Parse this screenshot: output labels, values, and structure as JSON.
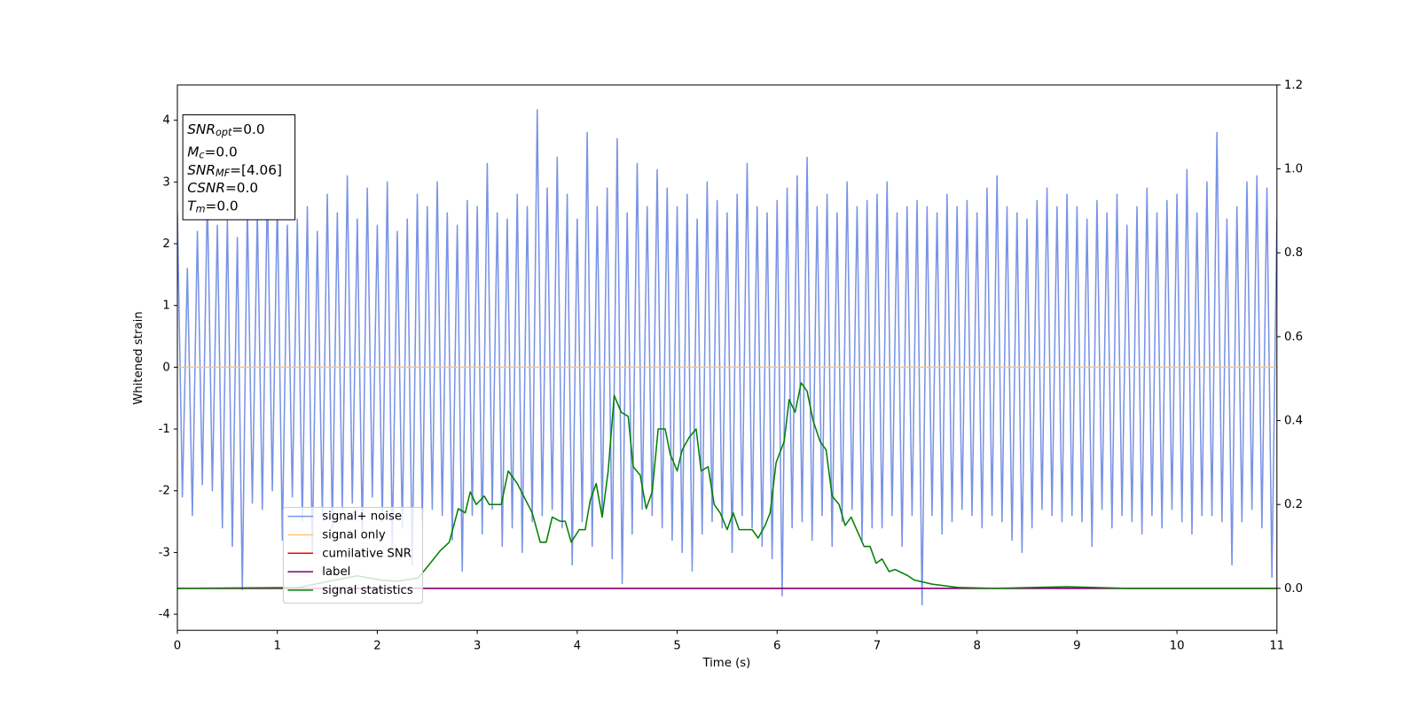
{
  "chart_data": {
    "type": "line",
    "xlabel": "Time (s)",
    "ylabel": "Whitened strain",
    "xlim": [
      0,
      11
    ],
    "xticks": [
      0,
      1,
      2,
      3,
      4,
      5,
      6,
      7,
      8,
      9,
      10,
      11
    ],
    "ylim": [
      -4.26,
      4.57
    ],
    "yticks": [
      -4,
      -3,
      -2,
      -1,
      0,
      1,
      2,
      3,
      4
    ],
    "y2lim": [
      -0.1,
      1.2
    ],
    "y2ticks": [
      {
        "value": 0,
        "label": "0.0"
      },
      0.2,
      0.4,
      0.6,
      0.8,
      {
        "value": 1,
        "label": "1.0"
      },
      1.2
    ],
    "annotations": [
      {
        "label": "SNR",
        "sub": "opt",
        "text": "=0.0"
      },
      {
        "label": "M",
        "sub": "c",
        "text": "=0.0"
      },
      {
        "label": "SNR",
        "sub": "MF",
        "text": "=[4.06]"
      },
      {
        "label": "CSNR",
        "text": "=0.0"
      },
      {
        "label": "T",
        "sub": "m",
        "text": "=0.0"
      }
    ],
    "series": [
      {
        "name": "signal+ noise",
        "color": "#7893e6",
        "x": [
          0,
          0.05,
          0.1,
          0.15,
          0.2,
          0.25,
          0.3,
          0.35,
          0.4,
          0.45,
          0.5,
          0.55,
          0.6,
          0.65,
          0.7,
          0.75,
          0.8,
          0.85,
          0.9,
          0.95,
          1,
          1.05,
          1.1,
          1.15,
          1.2,
          1.25,
          1.3,
          1.35,
          1.4,
          1.45,
          1.5,
          1.55,
          1.6,
          1.65,
          1.7,
          1.75,
          1.8,
          1.85,
          1.9,
          1.95,
          2,
          2.05,
          2.1,
          2.15,
          2.2,
          2.25,
          2.3,
          2.35,
          2.4,
          2.45,
          2.5,
          2.55,
          2.6,
          2.65,
          2.7,
          2.75,
          2.8,
          2.85,
          2.9,
          2.95,
          3,
          3.05,
          3.1,
          3.15,
          3.2,
          3.25,
          3.3,
          3.35,
          3.4,
          3.45,
          3.5,
          3.55,
          3.6,
          3.65,
          3.7,
          3.75,
          3.8,
          3.85,
          3.9,
          3.95,
          4,
          4.05,
          4.1,
          4.15,
          4.2,
          4.25,
          4.3,
          4.35,
          4.4,
          4.45,
          4.5,
          4.55,
          4.6,
          4.65,
          4.7,
          4.75,
          4.8,
          4.85,
          4.9,
          4.95,
          5,
          5.05,
          5.1,
          5.15,
          5.2,
          5.25,
          5.3,
          5.35,
          5.4,
          5.45,
          5.5,
          5.55,
          5.6,
          5.65,
          5.7,
          5.75,
          5.8,
          5.85,
          5.9,
          5.95,
          6,
          6.05,
          6.1,
          6.15,
          6.2,
          6.25,
          6.3,
          6.35,
          6.4,
          6.45,
          6.5,
          6.55,
          6.6,
          6.65,
          6.7,
          6.75,
          6.8,
          6.85,
          6.9,
          6.95,
          7,
          7.05,
          7.1,
          7.15,
          7.2,
          7.25,
          7.3,
          7.35,
          7.4,
          7.45,
          7.5,
          7.55,
          7.6,
          7.65,
          7.7,
          7.75,
          7.8,
          7.85,
          7.9,
          7.95,
          8,
          8.05,
          8.1,
          8.15,
          8.2,
          8.25,
          8.3,
          8.35,
          8.4,
          8.45,
          8.5,
          8.55,
          8.6,
          8.65,
          8.7,
          8.75,
          8.8,
          8.85,
          8.9,
          8.95,
          9,
          9.05,
          9.1,
          9.15,
          9.2,
          9.25,
          9.3,
          9.35,
          9.4,
          9.45,
          9.5,
          9.55,
          9.6,
          9.65,
          9.7,
          9.75,
          9.8,
          9.85,
          9.9,
          9.95,
          10,
          10.05,
          10.1,
          10.15,
          10.2,
          10.25,
          10.3,
          10.35,
          10.4,
          10.45,
          10.5,
          10.55,
          10.6,
          10.65,
          10.7,
          10.75,
          10.8,
          10.85,
          10.9,
          10.95,
          11
        ],
        "values": [
          2.5,
          -2.1,
          1.6,
          -2.4,
          2.2,
          -1.9,
          2.8,
          -2.0,
          2.3,
          -2.6,
          2.4,
          -2.9,
          2.1,
          -3.6,
          2.6,
          -2.2,
          2.5,
          -2.3,
          2.9,
          -2.0,
          2.7,
          -2.8,
          2.3,
          -2.1,
          2.4,
          -2.5,
          2.6,
          -3.0,
          2.2,
          -2.4,
          2.8,
          -2.6,
          2.5,
          -2.3,
          3.1,
          -2.2,
          2.4,
          -2.7,
          2.9,
          -2.1,
          2.3,
          -2.5,
          3.0,
          -2.9,
          2.2,
          -2.6,
          2.4,
          -3.2,
          2.8,
          -2.5,
          2.6,
          -2.3,
          3.0,
          -2.4,
          2.5,
          -2.8,
          2.3,
          -3.3,
          2.7,
          -2.4,
          2.6,
          -2.7,
          3.3,
          -2.3,
          2.5,
          -2.9,
          2.4,
          -2.6,
          2.8,
          -3.0,
          2.6,
          -2.5,
          4.17,
          -2.4,
          2.9,
          -2.3,
          3.4,
          -2.6,
          2.8,
          -3.2,
          2.4,
          -2.5,
          3.8,
          -2.9,
          2.6,
          -2.4,
          2.9,
          -3.1,
          3.7,
          -3.5,
          2.5,
          -2.7,
          3.3,
          -2.3,
          2.6,
          -2.4,
          3.2,
          -2.6,
          2.9,
          -2.8,
          2.6,
          -3.0,
          2.8,
          -3.3,
          2.4,
          -2.7,
          3.0,
          -2.5,
          2.7,
          -2.6,
          2.5,
          -3.0,
          2.8,
          -2.4,
          3.3,
          -2.6,
          2.6,
          -2.9,
          2.5,
          -3.1,
          2.7,
          -3.7,
          2.9,
          -2.6,
          3.1,
          -2.5,
          3.4,
          -2.8,
          2.6,
          -2.4,
          2.8,
          -2.9,
          2.5,
          -2.5,
          3.0,
          -2.3,
          2.6,
          -2.8,
          2.7,
          -2.6,
          2.8,
          -2.6,
          3.0,
          -2.4,
          2.5,
          -2.9,
          2.6,
          -2.4,
          2.7,
          -3.85,
          2.6,
          -2.4,
          2.5,
          -2.7,
          2.8,
          -2.5,
          2.6,
          -2.3,
          2.7,
          -2.4,
          2.5,
          -2.6,
          2.9,
          -2.4,
          3.1,
          -2.5,
          2.6,
          -2.8,
          2.5,
          -3.0,
          2.4,
          -2.6,
          2.7,
          -2.3,
          2.9,
          -2.4,
          2.6,
          -2.5,
          2.8,
          -2.4,
          2.6,
          -2.5,
          2.4,
          -2.9,
          2.7,
          -2.3,
          2.5,
          -2.6,
          2.8,
          -2.4,
          2.3,
          -2.5,
          2.6,
          -2.7,
          2.9,
          -2.4,
          2.5,
          -2.6,
          2.7,
          -2.3,
          2.8,
          -2.5,
          3.2,
          -2.7,
          2.5,
          -2.4,
          3.0,
          -2.4,
          3.8,
          -2.5,
          2.4,
          -3.2,
          2.6,
          -2.5,
          3.0,
          -2.3,
          3.1,
          -2.6,
          2.9,
          -3.4,
          2.4
        ]
      },
      {
        "name": "signal only",
        "color": "#ffc67a",
        "x": [
          0,
          11
        ],
        "values": [
          0,
          0
        ]
      },
      {
        "name": "cumilative SNR",
        "color": "#ff0000",
        "axis": "y2",
        "x": [
          0,
          11
        ],
        "values": [
          0,
          0
        ]
      },
      {
        "name": "label",
        "color": "#800080",
        "axis": "y2",
        "x": [
          0,
          11
        ],
        "values": [
          0,
          0
        ]
      },
      {
        "name": "signal statistics",
        "color": "#008000",
        "axis": "y2",
        "x": [
          0,
          1.21,
          1.58,
          1.8,
          2.03,
          2.2,
          2.41,
          2.53,
          2.63,
          2.72,
          2.81,
          2.88,
          2.93,
          2.99,
          3.07,
          3.12,
          3.24,
          3.31,
          3.4,
          3.55,
          3.63,
          3.69,
          3.75,
          3.83,
          3.88,
          3.94,
          4.02,
          4.08,
          4.13,
          4.19,
          4.25,
          4.31,
          4.37,
          4.44,
          4.51,
          4.56,
          4.63,
          4.69,
          4.75,
          4.81,
          4.88,
          4.93,
          5.0,
          5.05,
          5.12,
          5.19,
          5.24,
          5.31,
          5.37,
          5.43,
          5.5,
          5.56,
          5.62,
          5.75,
          5.81,
          5.88,
          5.93,
          5.99,
          6.07,
          6.12,
          6.18,
          6.24,
          6.3,
          6.36,
          6.43,
          6.49,
          6.55,
          6.62,
          6.68,
          6.74,
          6.87,
          6.93,
          6.99,
          7.05,
          7.12,
          7.18,
          7.31,
          7.37,
          7.55,
          7.82,
          8.18,
          8.9,
          9.5,
          11
        ],
        "values": [
          0,
          0.002,
          0.02,
          0.03,
          0.02,
          0.017,
          0.025,
          0.06,
          0.09,
          0.11,
          0.19,
          0.18,
          0.23,
          0.2,
          0.22,
          0.2,
          0.2,
          0.28,
          0.25,
          0.18,
          0.11,
          0.11,
          0.17,
          0.16,
          0.16,
          0.11,
          0.14,
          0.14,
          0.21,
          0.25,
          0.17,
          0.28,
          0.46,
          0.42,
          0.41,
          0.29,
          0.27,
          0.19,
          0.23,
          0.38,
          0.38,
          0.32,
          0.28,
          0.33,
          0.36,
          0.38,
          0.28,
          0.29,
          0.2,
          0.18,
          0.14,
          0.18,
          0.14,
          0.14,
          0.12,
          0.15,
          0.18,
          0.3,
          0.35,
          0.45,
          0.42,
          0.49,
          0.47,
          0.4,
          0.35,
          0.33,
          0.22,
          0.2,
          0.15,
          0.17,
          0.1,
          0.1,
          0.06,
          0.07,
          0.04,
          0.045,
          0.03,
          0.02,
          0.01,
          0.002,
          0,
          0.004,
          0,
          0
        ]
      }
    ]
  }
}
